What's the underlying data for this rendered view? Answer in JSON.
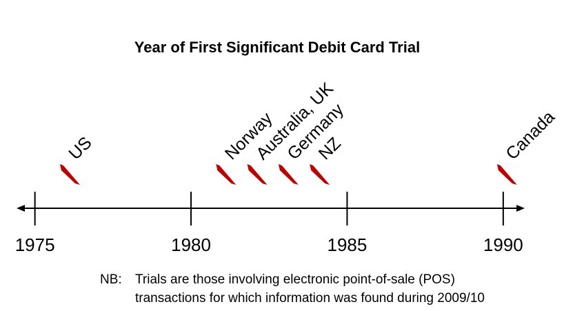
{
  "chart_data": {
    "type": "timeline",
    "title": "Year of First Significant Debit Card Trial",
    "categories": [
      "US",
      "Norway",
      "Australia, UK",
      "Germany",
      "NZ",
      "Canada"
    ],
    "x": [
      1976,
      1981,
      1982,
      1983,
      1984,
      1990
    ],
    "color": "#c00000",
    "xlim": [
      1974.5,
      1990.6
    ],
    "xticks": [
      1975,
      1980,
      1985,
      1990
    ],
    "note": {
      "prefix": "NB:",
      "lines": [
        "Trials are those involving electronic point-of-sale (POS)",
        "transactions for which information was found during 2009/10"
      ]
    }
  }
}
